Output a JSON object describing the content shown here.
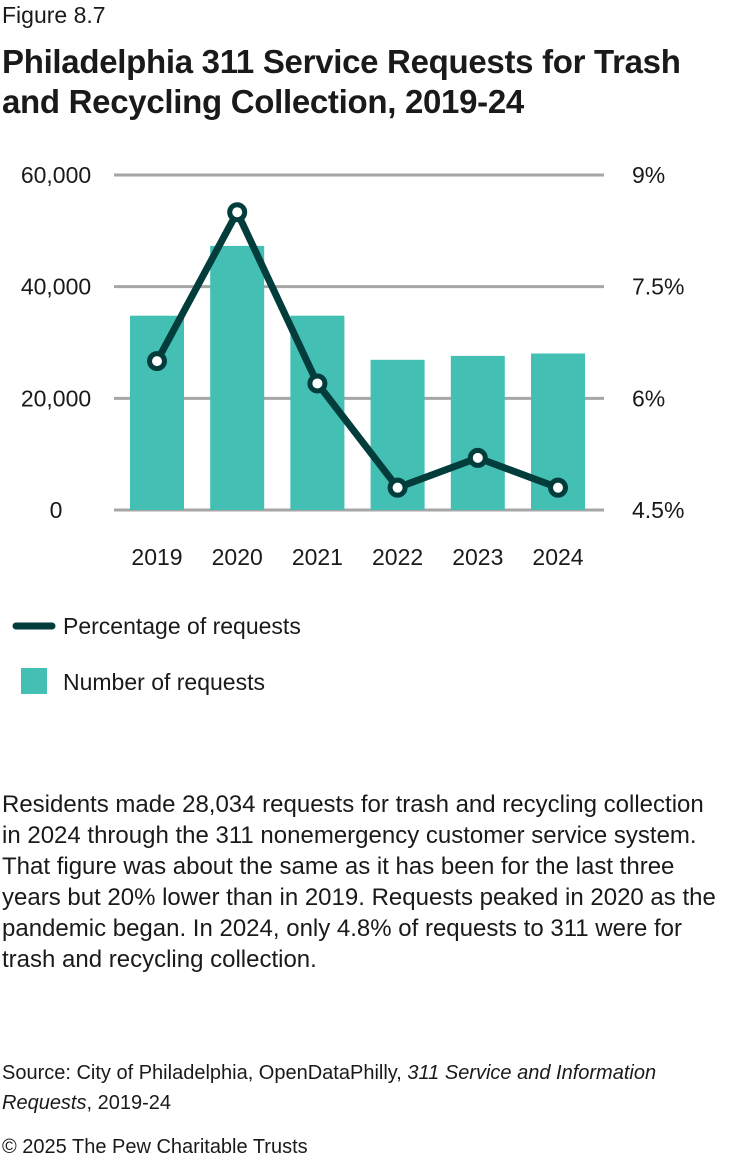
{
  "figure_label": "Figure 8.7",
  "title": "Philadelphia 311 Service Requests for Trash and Recycling Collection, 2019-24",
  "chart_data": {
    "type": "bar+line",
    "categories": [
      "2019",
      "2020",
      "2021",
      "2022",
      "2023",
      "2024"
    ],
    "series": [
      {
        "name": "Number of requests",
        "type": "bar",
        "axis": "left",
        "color": "#43bfb4",
        "values": [
          34800,
          47300,
          34800,
          26900,
          27600,
          28034
        ]
      },
      {
        "name": "Percentage of requests",
        "type": "line",
        "axis": "right",
        "color": "#023d3c",
        "values": [
          6.5,
          8.5,
          6.2,
          4.8,
          5.2,
          4.8
        ]
      }
    ],
    "left_axis": {
      "ylim": [
        0,
        60000
      ],
      "ticks": [
        0,
        20000,
        40000,
        60000
      ],
      "tick_labels": [
        "0",
        "20,000",
        "40,000",
        "60,000"
      ]
    },
    "right_axis": {
      "ylim": [
        4.5,
        9
      ],
      "ticks": [
        4.5,
        6,
        7.5,
        9
      ],
      "tick_labels": [
        "4.5%",
        "6%",
        "7.5%",
        "9%"
      ]
    },
    "grid": true,
    "legend_placement": "bottom-left",
    "legend": [
      "Percentage of requests",
      "Number of requests"
    ]
  },
  "body_text": "Residents made 28,034 requests for trash and recycling collection in 2024 through the 311 nonemergency customer service system. That figure was about the same as it has been for the last three years but 20% lower than in 2019. Requests peaked in 2020 as the pandemic began. In 2024, only 4.8% of requests to 311 were for trash and recycling collection.",
  "source": {
    "prefix": "Source: City of Philadelphia, OpenDataPhilly, ",
    "italic": "311 Service and Information Requests",
    "suffix": ", 2019-24"
  },
  "copyright": "© 2025 The Pew Charitable Trusts",
  "colors": {
    "grid": "#a6a6a6"
  }
}
